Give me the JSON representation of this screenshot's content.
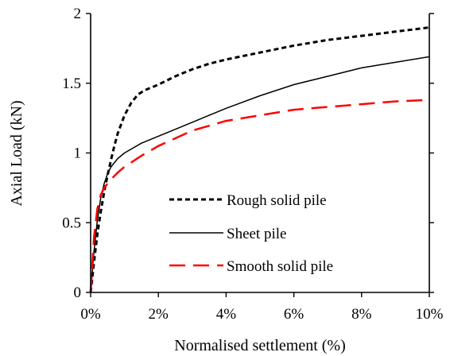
{
  "chart_data": {
    "type": "line",
    "title": "",
    "xlabel": "Normalised settlement (%)",
    "ylabel": "Axial Load (kN)",
    "xlim": [
      0,
      10
    ],
    "ylim": [
      0,
      2
    ],
    "x_ticks": [
      0,
      2,
      4,
      6,
      8,
      10
    ],
    "x_tick_labels": [
      "0%",
      "2%",
      "4%",
      "6%",
      "8%",
      "10%"
    ],
    "y_ticks": [
      0,
      0.5,
      1,
      1.5,
      2
    ],
    "y_tick_labels": [
      "0",
      "0.5",
      "1",
      "1.5",
      "2"
    ],
    "grid": false,
    "legend_position": "lower-right",
    "series": [
      {
        "name": "Rough solid pile",
        "color": "#000000",
        "dash": "short-dash",
        "x": [
          0,
          0.1,
          0.2,
          0.3,
          0.4,
          0.5,
          0.6,
          0.7,
          0.8,
          1.0,
          1.2,
          1.4,
          1.6,
          2.0,
          2.5,
          3.0,
          3.5,
          4.0,
          5.0,
          6.0,
          7.0,
          8.0,
          9.0,
          10.0
        ],
        "y": [
          0,
          0.22,
          0.42,
          0.58,
          0.72,
          0.84,
          0.95,
          1.05,
          1.14,
          1.27,
          1.36,
          1.42,
          1.45,
          1.49,
          1.55,
          1.6,
          1.64,
          1.67,
          1.72,
          1.77,
          1.81,
          1.84,
          1.87,
          1.9
        ]
      },
      {
        "name": "Sheet pile",
        "color": "#000000",
        "dash": "solid",
        "x": [
          0,
          0.1,
          0.2,
          0.3,
          0.4,
          0.5,
          0.6,
          0.8,
          1.0,
          1.5,
          2.0,
          3.0,
          4.0,
          5.0,
          6.0,
          7.0,
          8.0,
          9.0,
          10.0
        ],
        "y": [
          0,
          0.3,
          0.52,
          0.68,
          0.78,
          0.85,
          0.9,
          0.96,
          1.0,
          1.07,
          1.12,
          1.22,
          1.32,
          1.41,
          1.49,
          1.55,
          1.61,
          1.65,
          1.69
        ]
      },
      {
        "name": "Smooth solid pile",
        "color": "#ff0000",
        "dash": "long-dash",
        "x": [
          0,
          0.1,
          0.2,
          0.3,
          0.4,
          0.5,
          0.6,
          0.8,
          1.0,
          1.5,
          2.0,
          3.0,
          4.0,
          5.0,
          6.0,
          7.0,
          8.0,
          9.0,
          10.0
        ],
        "y": [
          0,
          0.4,
          0.6,
          0.7,
          0.75,
          0.78,
          0.81,
          0.86,
          0.9,
          0.98,
          1.05,
          1.16,
          1.23,
          1.27,
          1.31,
          1.33,
          1.35,
          1.37,
          1.38
        ]
      }
    ]
  }
}
